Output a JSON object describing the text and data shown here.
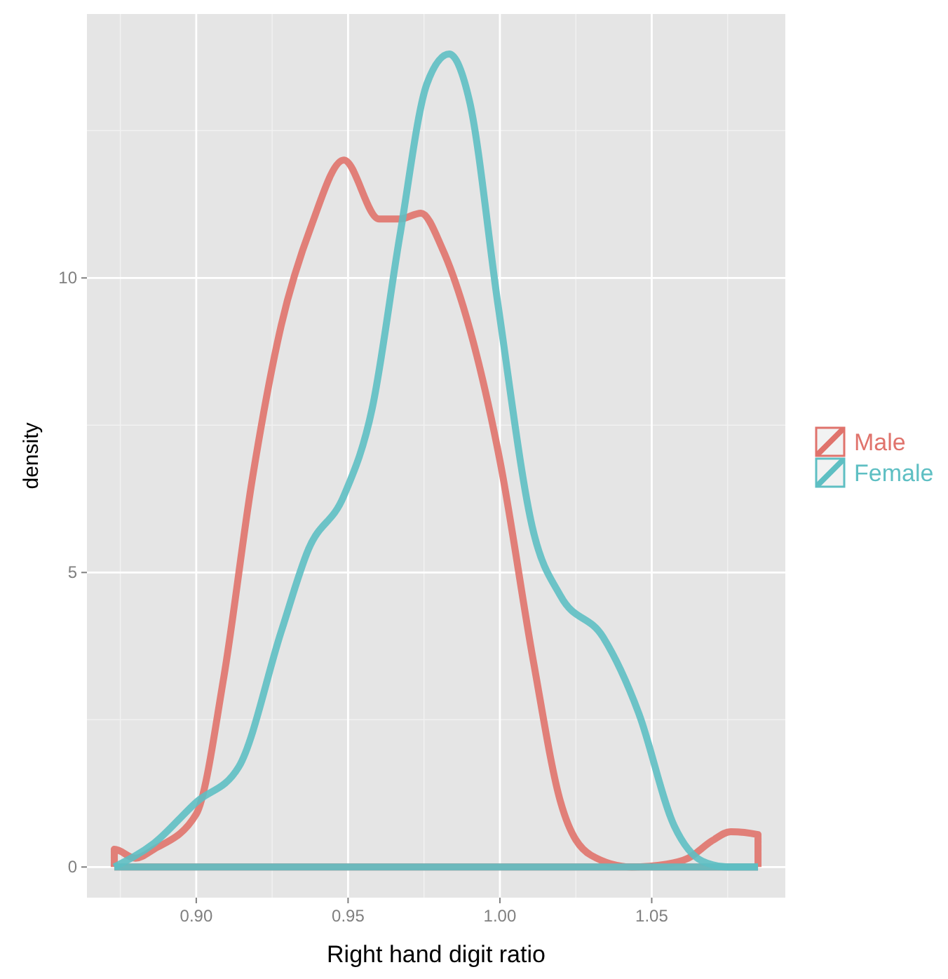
{
  "chart_data": {
    "type": "line",
    "xlabel": "Right hand digit ratio",
    "ylabel": "density",
    "xlim": [
      0.864,
      1.094
    ],
    "ylim": [
      -0.52,
      14.48
    ],
    "xticks": [
      {
        "value": 0.9,
        "label": "0.90"
      },
      {
        "value": 0.95,
        "label": "0.95"
      },
      {
        "value": 1.0,
        "label": "1.00"
      },
      {
        "value": 1.05,
        "label": "1.05"
      }
    ],
    "yticks": [
      0,
      5,
      10
    ],
    "grid": true,
    "legend": "right",
    "ref_lines": [
      {
        "axis": "y",
        "value": 0,
        "color": "#e0736c"
      },
      {
        "axis": "y",
        "value": 0,
        "color": "#5ebfc3"
      }
    ],
    "series": [
      {
        "name": "Male",
        "color": "#e0736c",
        "x": [
          0.873,
          0.873,
          0.88,
          0.886,
          0.9,
          0.909,
          0.9185,
          0.928,
          0.938,
          0.9486,
          0.9602,
          0.967,
          0.974,
          0.981,
          0.988,
          1.0,
          1.011,
          1.02,
          1.03,
          1.0435,
          1.055,
          1.062,
          1.07,
          1.076,
          1.085,
          1.085
        ],
        "values": [
          0,
          0.3,
          0.15,
          0.3,
          0.9,
          3.2,
          6.6,
          9.2,
          10.9,
          12.0,
          11.0,
          11.0,
          11.1,
          10.5,
          9.5,
          6.9,
          3.5,
          1.1,
          0.2,
          0,
          0.05,
          0.15,
          0.45,
          0.6,
          0.55,
          0
        ]
      },
      {
        "name": "Female",
        "color": "#5ebfc3",
        "x": [
          0.873,
          0.886,
          0.9,
          0.914,
          0.928,
          0.937,
          0.9486,
          0.958,
          0.967,
          0.976,
          0.9833,
          0.99,
          0.9995,
          1.011,
          1.02,
          1.034,
          1.0458,
          1.0574,
          1.0667,
          1.075,
          1.085
        ],
        "values": [
          0,
          0.4,
          1.1,
          1.7,
          4.0,
          5.4,
          6.3,
          7.8,
          10.7,
          13.3,
          13.8,
          13.0,
          9.5,
          5.7,
          4.6,
          3.9,
          2.6,
          0.7,
          0.1,
          0,
          0
        ]
      }
    ]
  }
}
